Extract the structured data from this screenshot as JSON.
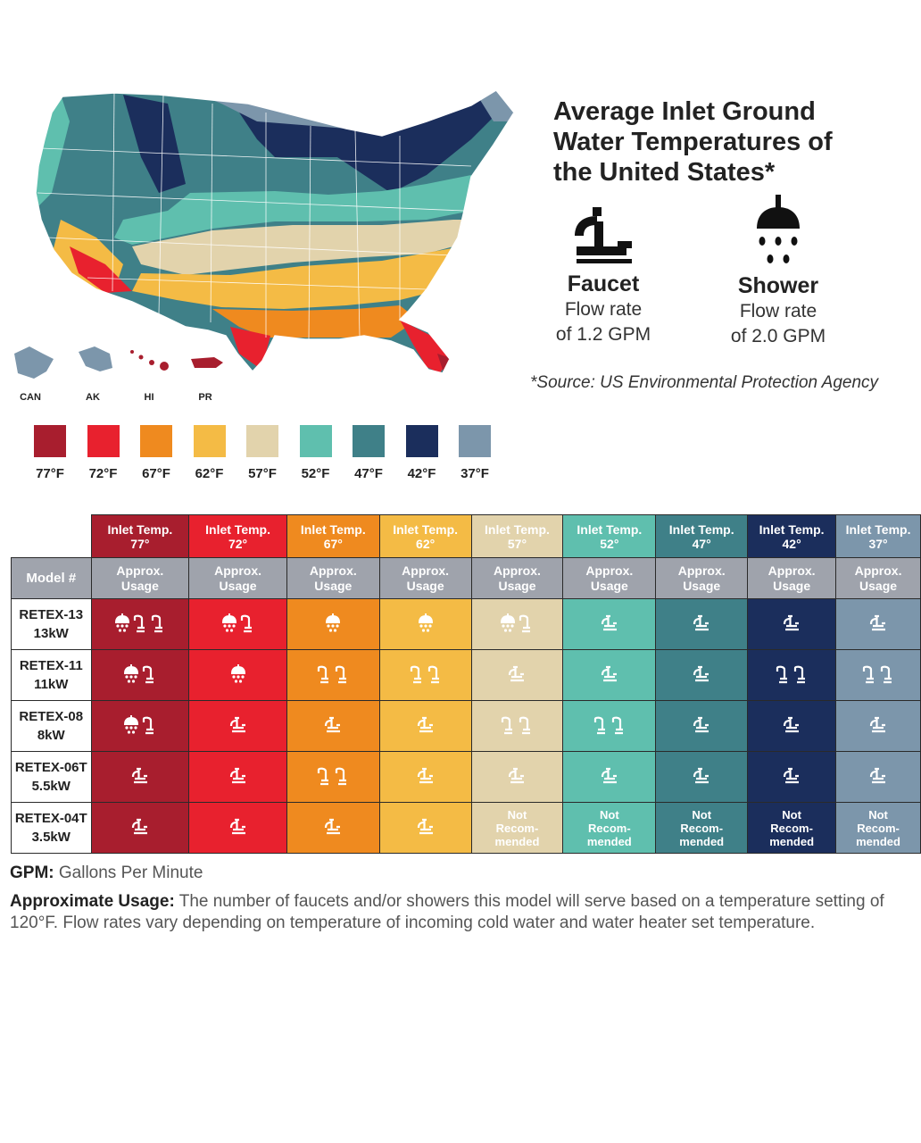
{
  "title_lines": [
    "Average Inlet Ground",
    "Water Temperatures of",
    "the United States*"
  ],
  "faucet": {
    "name": "Faucet",
    "rate_line1": "Flow rate",
    "rate_line2": "of 1.2 GPM",
    "icon": "faucet-icon"
  },
  "shower": {
    "name": "Shower",
    "rate_line1": "Flow rate",
    "rate_line2": "of 2.0 GPM",
    "icon": "shower-icon"
  },
  "source": "*Source: US Environmental Protection Agency",
  "map_labels": {
    "can": "CAN",
    "ak": "AK",
    "hi": "HI",
    "pr": "PR"
  },
  "legend": [
    {
      "label": "77°F",
      "color": "#a81e2e"
    },
    {
      "label": "72°F",
      "color": "#e8212e"
    },
    {
      "label": "67°F",
      "color": "#ef8a1f"
    },
    {
      "label": "62°F",
      "color": "#f4bb45"
    },
    {
      "label": "57°F",
      "color": "#e2d3ac"
    },
    {
      "label": "52°F",
      "color": "#5fbfae"
    },
    {
      "label": "47°F",
      "color": "#3f8088"
    },
    {
      "label": "42°F",
      "color": "#1b2e5c"
    },
    {
      "label": "37°F",
      "color": "#7c96ab"
    }
  ],
  "table": {
    "model_header": "Model #",
    "inlet_label": "Inlet Temp.",
    "usage_label": "Approx. Usage",
    "columns": [
      {
        "temp": "77°",
        "color": "#a81e2e"
      },
      {
        "temp": "72°",
        "color": "#e8212e"
      },
      {
        "temp": "67°",
        "color": "#ef8a1f"
      },
      {
        "temp": "62°",
        "color": "#f4bb45"
      },
      {
        "temp": "57°",
        "color": "#e2d3ac"
      },
      {
        "temp": "52°",
        "color": "#5fbfae"
      },
      {
        "temp": "47°",
        "color": "#3f8088"
      },
      {
        "temp": "42°",
        "color": "#1b2e5c"
      },
      {
        "temp": "37°",
        "color": "#7c96ab"
      }
    ],
    "not_recommended_label": "Not Recom- mended",
    "rows": [
      {
        "model": "RETEX-13",
        "power": "13kW",
        "cells": [
          "SFF",
          "SF",
          "S",
          "S",
          "SF",
          "F",
          "F",
          "F",
          "F"
        ]
      },
      {
        "model": "RETEX-11",
        "power": "11kW",
        "cells": [
          "SF",
          "S",
          "FF",
          "FF",
          "F",
          "F",
          "F",
          "FF",
          "FF"
        ]
      },
      {
        "model": "RETEX-08",
        "power": "8kW",
        "cells": [
          "SF",
          "F",
          "F",
          "F",
          "FF",
          "FF",
          "F",
          "F",
          "F"
        ]
      },
      {
        "model": "RETEX-06T",
        "power": "5.5kW",
        "cells": [
          "F",
          "F",
          "FF",
          "F",
          "F",
          "F",
          "F",
          "F",
          "F"
        ]
      },
      {
        "model": "RETEX-04T",
        "power": "3.5kW",
        "cells": [
          "F",
          "F",
          "F",
          "F",
          "NR",
          "NR",
          "NR",
          "NR",
          "NR"
        ]
      }
    ]
  },
  "gpm_note": {
    "term": "GPM:",
    "text": " Gallons Per Minute"
  },
  "usage_note": {
    "term": "Approximate Usage:",
    "text": " The number of faucets and/or showers this model will serve based on a temperature setting of 120°F. Flow rates vary depending on temperature of incoming cold water and water heater set temperature."
  }
}
